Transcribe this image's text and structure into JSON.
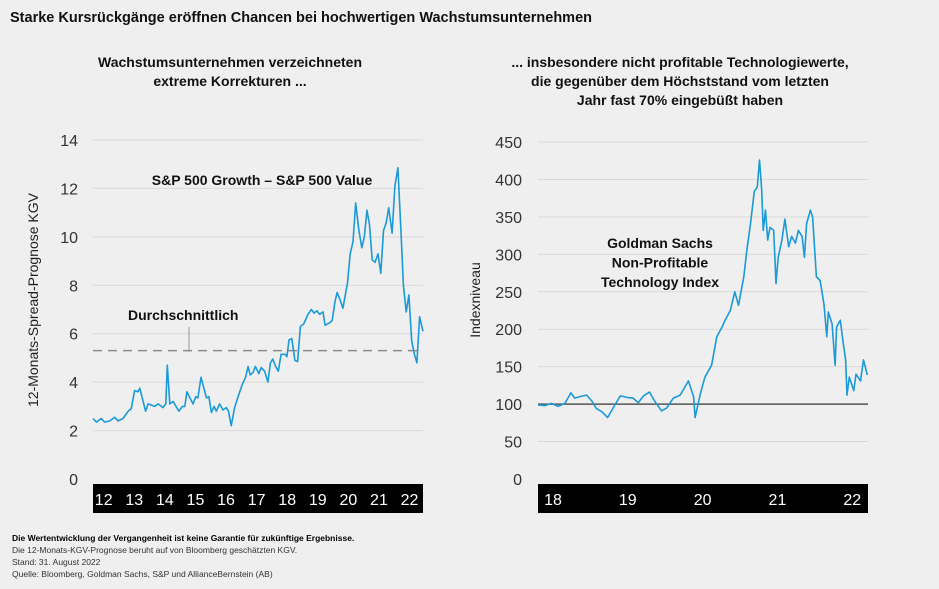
{
  "title": "Starke Kursrückgänge eröffnen Chancen bei hochwertigen Wachstumsunternehmen",
  "colors": {
    "series": "#1a9ad6",
    "background": "#efefef",
    "grid": "#d9d9d9",
    "axis_band": "#000000",
    "baseline": "#555555",
    "average": "#8c8c8c"
  },
  "chart_data": [
    {
      "type": "line",
      "subtitle": "Wachstumsunternehmen verzeichneten extreme Korrekturen ...",
      "subtitle_lines": [
        "Wachstumsunternehmen verzeichneten",
        "extreme Korrekturen ..."
      ],
      "ylabel": "12-Monats-Spread-Prognose KGV",
      "xlabel": "",
      "ylim": [
        0,
        14
      ],
      "xlim": [
        11.65,
        22.44
      ],
      "yticks": [
        "0",
        "2",
        "4",
        "6",
        "8",
        "10",
        "12",
        "14"
      ],
      "xticks": [
        "12",
        "13",
        "14",
        "15",
        "16",
        "17",
        "18",
        "19",
        "20",
        "21",
        "22"
      ],
      "grid": true,
      "annotations": {
        "series_label": "S&P 500 Growth – S&P 500 Value",
        "average_label": "Durchschnittlich"
      },
      "average": 5.3,
      "series": [
        {
          "name": "S&P 500 Growth – S&P 500 Value",
          "x": [
            11.65,
            11.76,
            11.92,
            12.03,
            12.2,
            12.36,
            12.47,
            12.63,
            12.8,
            12.9,
            13.01,
            13.12,
            13.18,
            13.37,
            13.45,
            13.67,
            13.78,
            13.94,
            14.03,
            14.08,
            14.16,
            14.27,
            14.46,
            14.57,
            14.65,
            14.72,
            14.92,
            15.01,
            15.08,
            15.18,
            15.36,
            15.44,
            15.52,
            15.61,
            15.68,
            15.79,
            15.9,
            16.01,
            16.08,
            16.17,
            16.28,
            16.42,
            16.53,
            16.64,
            16.72,
            16.79,
            16.88,
            16.96,
            17.07,
            17.15,
            17.26,
            17.37,
            17.45,
            17.53,
            17.62,
            17.71,
            17.8,
            17.93,
            17.99,
            18.06,
            18.15,
            18.25,
            18.34,
            18.43,
            18.54,
            18.68,
            18.79,
            18.88,
            18.97,
            19.06,
            19.17,
            19.24,
            19.39,
            19.47,
            19.56,
            19.63,
            19.73,
            19.82,
            19.97,
            20.06,
            20.15,
            20.24,
            20.34,
            20.44,
            20.52,
            20.61,
            20.69,
            20.78,
            20.87,
            20.97,
            21.06,
            21.15,
            21.24,
            21.32,
            21.43,
            21.52,
            21.62,
            21.72,
            21.8,
            21.89,
            21.98,
            22.07,
            22.15,
            22.24,
            22.33,
            22.44
          ],
          "y": [
            2.5,
            2.35,
            2.5,
            2.35,
            2.4,
            2.55,
            2.4,
            2.5,
            2.8,
            2.9,
            3.65,
            3.6,
            3.75,
            2.8,
            3.1,
            3.0,
            3.1,
            2.95,
            3.1,
            4.7,
            3.1,
            3.2,
            2.8,
            3.0,
            3.0,
            3.6,
            3.1,
            3.4,
            3.35,
            4.2,
            3.35,
            3.4,
            2.75,
            3.0,
            2.8,
            3.1,
            2.85,
            2.95,
            2.8,
            2.2,
            2.95,
            3.5,
            3.9,
            4.2,
            4.65,
            4.3,
            4.4,
            4.65,
            4.35,
            4.6,
            4.45,
            4.0,
            4.8,
            4.95,
            4.65,
            4.45,
            5.15,
            5.15,
            5.05,
            5.75,
            5.8,
            4.9,
            4.85,
            6.3,
            6.4,
            6.8,
            7.0,
            6.85,
            6.95,
            6.8,
            6.9,
            6.35,
            6.45,
            6.55,
            7.3,
            7.7,
            7.4,
            7.05,
            8.1,
            9.3,
            9.8,
            11.4,
            10.3,
            9.55,
            10.0,
            11.1,
            10.5,
            9.05,
            8.95,
            9.3,
            8.5,
            10.25,
            10.6,
            11.2,
            10.15,
            12.1,
            12.85,
            10.2,
            8.0,
            6.9,
            7.6,
            5.7,
            5.2,
            4.8,
            6.7,
            6.1
          ]
        }
      ]
    },
    {
      "type": "line",
      "subtitle": "... insbesondere nicht profitable Technologiewerte, die gegenüber dem Höchststand vom letzten Jahr fast 70% eingebüßt haben",
      "subtitle_lines": [
        "... insbesondere nicht profitable Technologiewerte,",
        "die gegenüber dem Höchststand vom letzten",
        "Jahr fast 70% eingebüßt haben"
      ],
      "ylabel": "Indexniveau",
      "xlabel": "",
      "ylim": [
        0,
        450
      ],
      "xlim": [
        17.8,
        22.21
      ],
      "yticks": [
        "0",
        "50",
        "100",
        "150",
        "200",
        "250",
        "300",
        "350",
        "400",
        "450"
      ],
      "xticks": [
        "18",
        "19",
        "20",
        "21",
        "22"
      ],
      "grid": true,
      "baseline": 100,
      "annotations": {
        "series_label_lines": [
          "Goldman Sachs",
          "Non-Profitable",
          "Technology Index"
        ]
      },
      "series": [
        {
          "name": "Goldman Sachs Non-Profitable Technology Index",
          "x": [
            17.8,
            17.89,
            17.98,
            18.07,
            18.16,
            18.24,
            18.29,
            18.36,
            18.45,
            18.52,
            18.58,
            18.65,
            18.73,
            18.81,
            18.9,
            18.99,
            19.07,
            19.14,
            19.21,
            19.29,
            19.36,
            19.45,
            19.52,
            19.61,
            19.7,
            19.81,
            19.88,
            19.9,
            19.97,
            20.03,
            20.12,
            20.19,
            20.26,
            20.3,
            20.37,
            20.43,
            20.48,
            20.55,
            20.59,
            20.64,
            20.69,
            20.73,
            20.76,
            20.79,
            20.81,
            20.84,
            20.87,
            20.9,
            20.95,
            20.98,
            21.01,
            21.06,
            21.1,
            21.15,
            21.19,
            21.24,
            21.28,
            21.33,
            21.36,
            21.39,
            21.44,
            21.47,
            21.52,
            21.57,
            21.62,
            21.66,
            21.68,
            21.73,
            21.77,
            21.79,
            21.84,
            21.88,
            21.91,
            21.93,
            21.96,
            22.02,
            22.05,
            22.11,
            22.15,
            22.2
          ],
          "y": [
            99,
            98,
            101,
            97,
            101,
            115,
            108,
            110,
            112,
            104,
            94,
            90,
            82,
            96,
            111,
            109,
            108,
            102,
            111,
            116,
            104,
            91,
            95,
            108,
            112,
            131,
            110,
            82,
            114,
            136,
            152,
            190,
            203,
            212,
            225,
            250,
            232,
            270,
            305,
            341,
            384,
            390,
            426,
            386,
            332,
            359,
            319,
            336,
            332,
            261,
            296,
            319,
            347,
            310,
            324,
            315,
            332,
            324,
            296,
            341,
            359,
            350,
            270,
            265,
            234,
            190,
            223,
            207,
            152,
            203,
            212,
            181,
            159,
            112,
            136,
            118,
            140,
            131,
            159,
            139
          ]
        }
      ]
    }
  ],
  "footer": {
    "disclaimer": "Die Wertentwicklung der Vergangenheit ist keine Garantie für zukünftige Ergebnisse.",
    "note": "Die 12-Monats-KGV-Prognose beruht auf von Bloomberg geschätzten KGV.",
    "date": "Stand: 31. August 2022",
    "source": "Quelle: Bloomberg, Goldman Sachs, S&P und AllianceBernstein (AB)"
  }
}
